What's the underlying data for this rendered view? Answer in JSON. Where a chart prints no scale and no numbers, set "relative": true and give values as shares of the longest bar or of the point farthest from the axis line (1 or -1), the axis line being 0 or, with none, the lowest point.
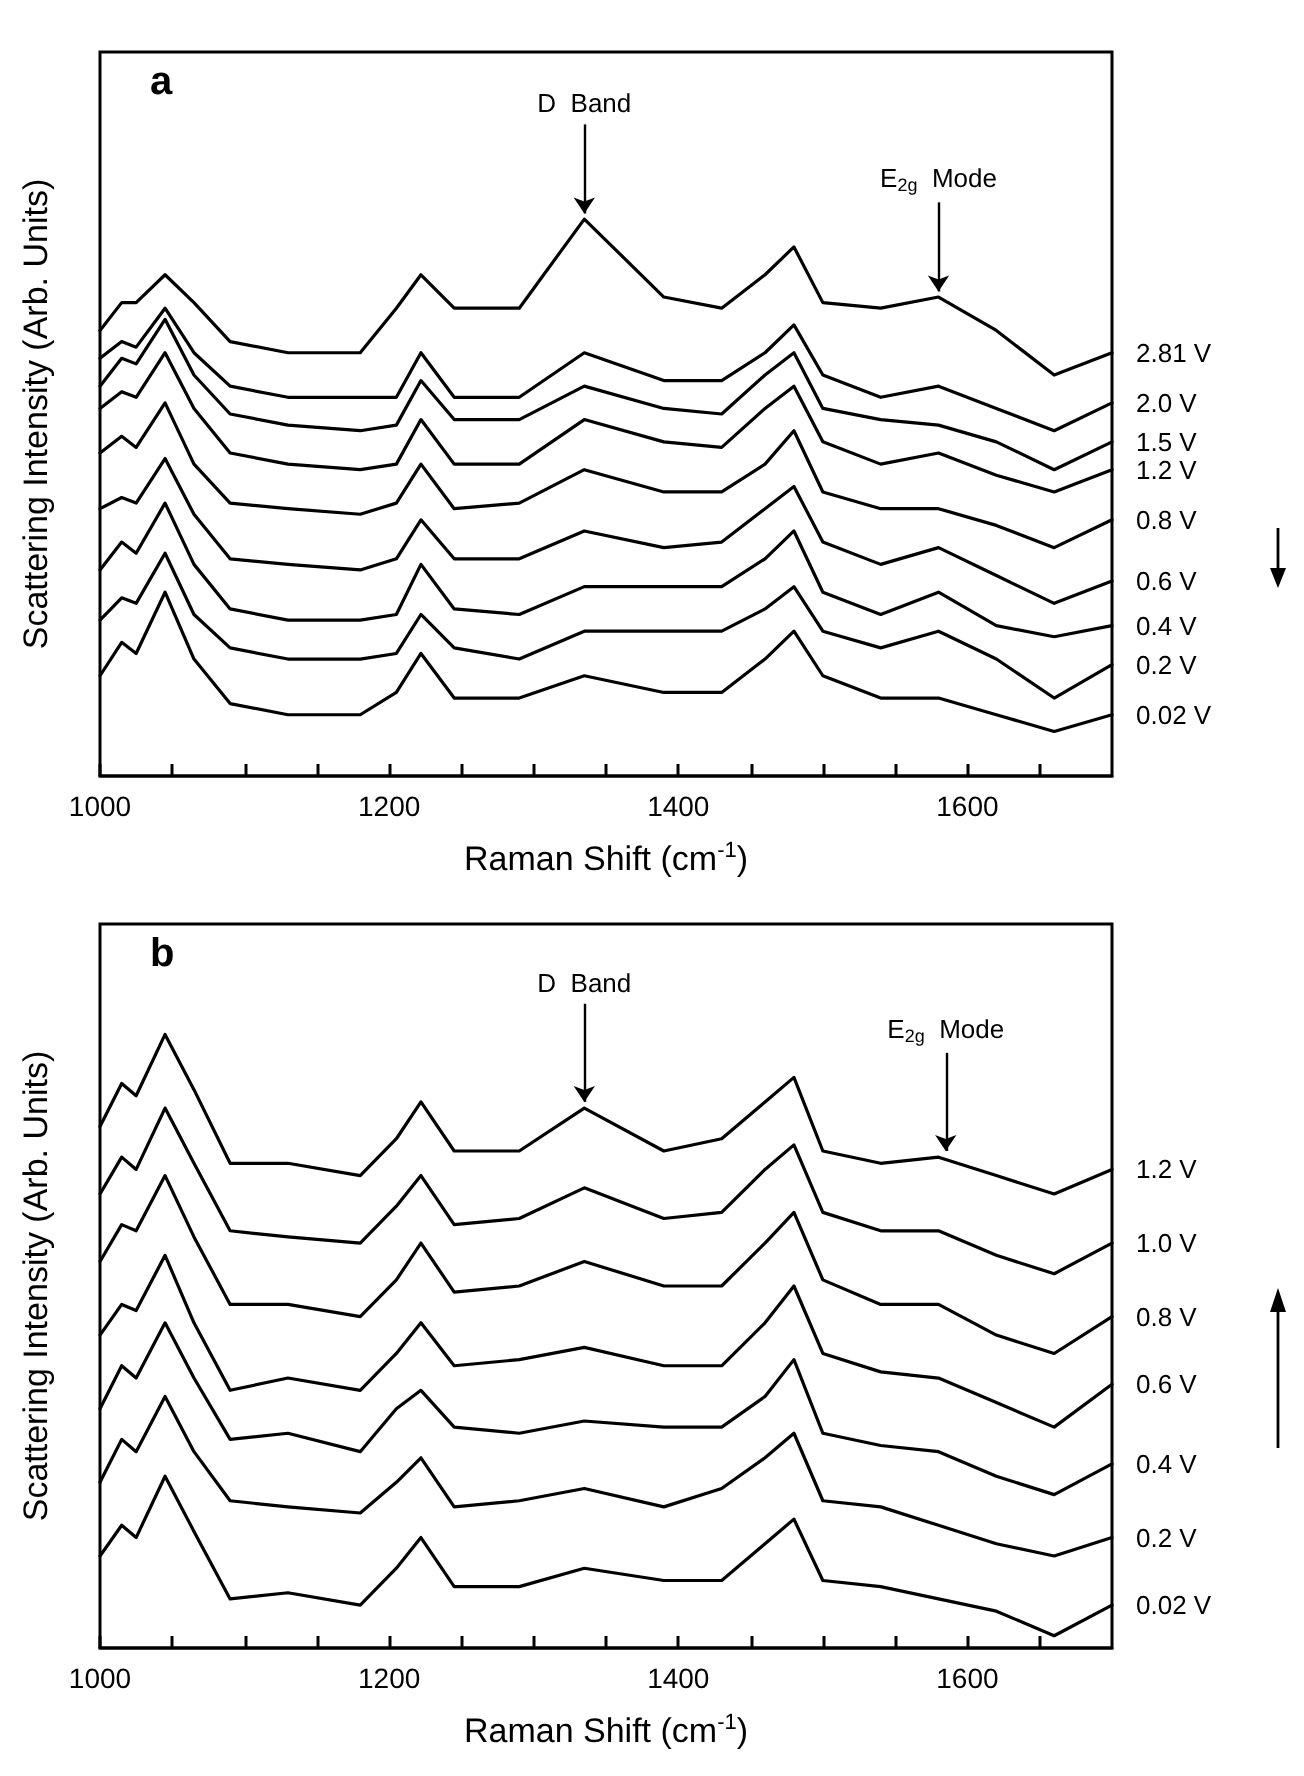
{
  "chart_data": [
    {
      "type": "line",
      "title": "a",
      "xlabel": "Raman Shift (cm$^{-1}$)",
      "ylabel": "Scattering Intensity (Arb. Units)",
      "relative": true,
      "tick_labels": "x",
      "grid": false,
      "legend": false,
      "xlim": [
        1000,
        1700
      ],
      "xticks": [
        1000,
        {
          "value": 1050,
          "label": null
        },
        {
          "value": 1100,
          "label": null
        },
        {
          "value": 1150,
          "label": null
        },
        1200,
        {
          "value": 1250,
          "label": null
        },
        {
          "value": 1300,
          "label": null
        },
        {
          "value": 1350,
          "label": null
        },
        1400,
        {
          "value": 1450,
          "label": null
        },
        {
          "value": 1500,
          "label": null
        },
        {
          "value": 1550,
          "label": null
        },
        1600,
        {
          "value": 1650,
          "label": null
        }
      ],
      "x": [
        1000,
        1015,
        1025,
        1045,
        1065,
        1090,
        1130,
        1180,
        1205,
        1222,
        1245,
        1290,
        1335,
        1390,
        1430,
        1460,
        1480,
        1500,
        1540,
        1580,
        1620,
        1660,
        1700
      ],
      "annotations": [
        {
          "text": "D  Band",
          "x": 1335,
          "y": 1.0
        },
        {
          "text": "E$_{2g}$  Mode",
          "x": 1580,
          "y": 0.86
        }
      ],
      "series": [
        {
          "name": "2.81 V",
          "color": "#000000",
          "values": [
            0.8,
            0.85,
            0.85,
            0.9,
            0.85,
            0.78,
            0.76,
            0.76,
            0.84,
            0.9,
            0.84,
            0.84,
            1.0,
            0.86,
            0.84,
            0.9,
            0.95,
            0.85,
            0.84,
            0.86,
            0.8,
            0.72,
            0.76
          ]
        },
        {
          "name": "2.0 V",
          "color": "#000000",
          "values": [
            0.75,
            0.78,
            0.77,
            0.84,
            0.76,
            0.7,
            0.68,
            0.68,
            0.68,
            0.76,
            0.68,
            0.68,
            0.76,
            0.71,
            0.71,
            0.76,
            0.81,
            0.72,
            0.68,
            0.7,
            0.66,
            0.62,
            0.67
          ]
        },
        {
          "name": "1.5 V",
          "color": "#000000",
          "values": [
            0.7,
            0.75,
            0.74,
            0.82,
            0.72,
            0.65,
            0.63,
            0.62,
            0.63,
            0.71,
            0.64,
            0.64,
            0.7,
            0.66,
            0.65,
            0.72,
            0.76,
            0.66,
            0.64,
            0.63,
            0.6,
            0.55,
            0.6
          ]
        },
        {
          "name": "1.2 V",
          "color": "#000000",
          "values": [
            0.66,
            0.69,
            0.68,
            0.76,
            0.66,
            0.58,
            0.56,
            0.55,
            0.56,
            0.64,
            0.56,
            0.56,
            0.64,
            0.6,
            0.59,
            0.66,
            0.7,
            0.6,
            0.56,
            0.58,
            0.54,
            0.51,
            0.55
          ]
        },
        {
          "name": "0.8 V",
          "color": "#000000",
          "values": [
            0.58,
            0.61,
            0.59,
            0.67,
            0.56,
            0.49,
            0.48,
            0.47,
            0.49,
            0.56,
            0.48,
            0.49,
            0.55,
            0.51,
            0.51,
            0.56,
            0.62,
            0.51,
            0.48,
            0.48,
            0.45,
            0.41,
            0.46
          ]
        },
        {
          "name": "0.6 V",
          "color": "#000000",
          "values": [
            0.48,
            0.5,
            0.49,
            0.57,
            0.47,
            0.39,
            0.38,
            0.37,
            0.39,
            0.46,
            0.39,
            0.39,
            0.44,
            0.41,
            0.42,
            0.48,
            0.52,
            0.42,
            0.38,
            0.41,
            0.36,
            0.31,
            0.35
          ]
        },
        {
          "name": "0.4 V",
          "color": "#000000",
          "values": [
            0.37,
            0.42,
            0.4,
            0.49,
            0.38,
            0.3,
            0.28,
            0.28,
            0.29,
            0.38,
            0.3,
            0.29,
            0.34,
            0.34,
            0.34,
            0.39,
            0.44,
            0.33,
            0.29,
            0.33,
            0.27,
            0.25,
            0.27
          ]
        },
        {
          "name": "0.2 V",
          "color": "#000000",
          "values": [
            0.28,
            0.32,
            0.31,
            0.4,
            0.29,
            0.23,
            0.21,
            0.21,
            0.22,
            0.29,
            0.23,
            0.21,
            0.26,
            0.26,
            0.26,
            0.3,
            0.34,
            0.26,
            0.23,
            0.26,
            0.21,
            0.14,
            0.2
          ]
        },
        {
          "name": "0.02 V",
          "color": "#000000",
          "values": [
            0.18,
            0.24,
            0.22,
            0.33,
            0.21,
            0.13,
            0.11,
            0.11,
            0.15,
            0.22,
            0.14,
            0.14,
            0.18,
            0.15,
            0.15,
            0.21,
            0.26,
            0.18,
            0.14,
            0.14,
            0.11,
            0.08,
            0.11
          ]
        }
      ]
    },
    {
      "type": "line",
      "title": "b",
      "xlabel": "Raman Shift (cm$^{-1}$)",
      "ylabel": "Scattering Intensity (Arb. Units)",
      "relative": true,
      "tick_labels": "x",
      "grid": false,
      "legend": false,
      "xlim": [
        1000,
        1700
      ],
      "xticks": [
        1000,
        {
          "value": 1050,
          "label": null
        },
        {
          "value": 1100,
          "label": null
        },
        {
          "value": 1150,
          "label": null
        },
        1200,
        {
          "value": 1250,
          "label": null
        },
        {
          "value": 1300,
          "label": null
        },
        {
          "value": 1350,
          "label": null
        },
        1400,
        {
          "value": 1450,
          "label": null
        },
        {
          "value": 1500,
          "label": null
        },
        {
          "value": 1550,
          "label": null
        },
        1600,
        {
          "value": 1650,
          "label": null
        }
      ],
      "x": [
        1000,
        1015,
        1025,
        1045,
        1065,
        1090,
        1130,
        1180,
        1205,
        1222,
        1245,
        1290,
        1335,
        1390,
        1430,
        1460,
        1480,
        1500,
        1540,
        1580,
        1620,
        1660,
        1700
      ],
      "annotations": [
        {
          "text": "D  Band",
          "x": 1335,
          "y": 0.88
        },
        {
          "text": "E$_{2g}$  Mode",
          "x": 1585,
          "y": 0.8
        }
      ],
      "series": [
        {
          "name": "1.2 V",
          "color": "#000000",
          "values": [
            0.85,
            0.92,
            0.9,
            1.0,
            0.91,
            0.79,
            0.79,
            0.77,
            0.83,
            0.89,
            0.81,
            0.81,
            0.88,
            0.81,
            0.83,
            0.89,
            0.93,
            0.81,
            0.79,
            0.8,
            0.77,
            0.74,
            0.78
          ]
        },
        {
          "name": "1.0 V",
          "color": "#000000",
          "values": [
            0.74,
            0.8,
            0.78,
            0.88,
            0.79,
            0.68,
            0.67,
            0.66,
            0.72,
            0.77,
            0.69,
            0.7,
            0.75,
            0.7,
            0.71,
            0.78,
            0.82,
            0.71,
            0.68,
            0.68,
            0.64,
            0.61,
            0.66
          ]
        },
        {
          "name": "0.8 V",
          "color": "#000000",
          "values": [
            0.63,
            0.69,
            0.68,
            0.77,
            0.67,
            0.56,
            0.56,
            0.54,
            0.6,
            0.66,
            0.58,
            0.59,
            0.63,
            0.59,
            0.59,
            0.66,
            0.71,
            0.6,
            0.56,
            0.56,
            0.51,
            0.48,
            0.54
          ]
        },
        {
          "name": "0.6 V",
          "color": "#000000",
          "values": [
            0.51,
            0.56,
            0.55,
            0.64,
            0.53,
            0.42,
            0.44,
            0.42,
            0.48,
            0.53,
            0.46,
            0.47,
            0.49,
            0.46,
            0.46,
            0.53,
            0.59,
            0.48,
            0.45,
            0.44,
            0.4,
            0.36,
            0.43
          ]
        },
        {
          "name": "0.4 V",
          "color": "#000000",
          "values": [
            0.39,
            0.46,
            0.44,
            0.53,
            0.44,
            0.34,
            0.35,
            0.32,
            0.39,
            0.42,
            0.36,
            0.35,
            0.37,
            0.36,
            0.36,
            0.41,
            0.47,
            0.35,
            0.33,
            0.32,
            0.28,
            0.25,
            0.3
          ]
        },
        {
          "name": "0.2 V",
          "color": "#000000",
          "values": [
            0.27,
            0.34,
            0.32,
            0.41,
            0.32,
            0.24,
            0.23,
            0.22,
            0.27,
            0.31,
            0.23,
            0.24,
            0.26,
            0.23,
            0.26,
            0.31,
            0.35,
            0.24,
            0.23,
            0.2,
            0.17,
            0.15,
            0.18
          ]
        },
        {
          "name": "0.02 V",
          "color": "#000000",
          "values": [
            0.15,
            0.2,
            0.18,
            0.28,
            0.19,
            0.08,
            0.09,
            0.07,
            0.13,
            0.18,
            0.1,
            0.1,
            0.13,
            0.11,
            0.11,
            0.17,
            0.21,
            0.11,
            0.1,
            0.08,
            0.06,
            0.02,
            0.07
          ]
        }
      ]
    }
  ]
}
